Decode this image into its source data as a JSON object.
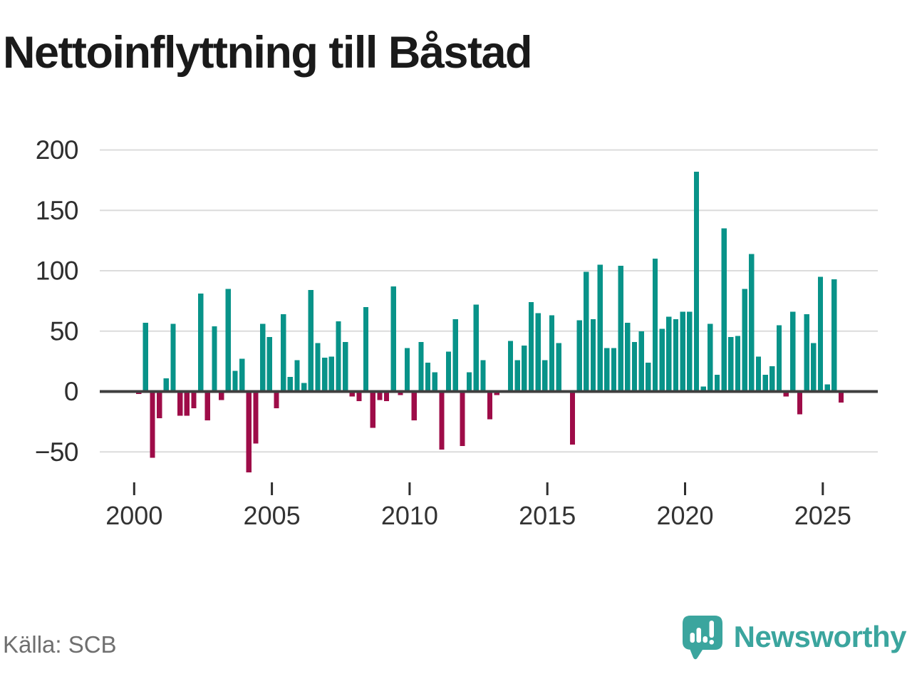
{
  "title": "Nettoinflyttning till Båstad",
  "source": "Källa: SCB",
  "branding": {
    "logo_text": "Newsworthy",
    "logo_color": "#3ba59e"
  },
  "colors": {
    "positive_bar": "#089389",
    "negative_bar": "#9e0c48",
    "gridline": "#dcdcdc",
    "zero_line": "#3f3f3f",
    "tick_mark": "#2f2f2f",
    "axis_label": "#333333",
    "title_text": "#1a1a1a",
    "source_text": "#6f6f6f",
    "background": "#ffffff"
  },
  "chart_data": {
    "type": "bar",
    "title": "Nettoinflyttning till Båstad",
    "frequency": "quarterly",
    "start": "2000 Q1",
    "end": "2025 Q3",
    "grid": true,
    "ylim": [
      -75,
      215
    ],
    "x_ticks": [
      {
        "label": "2000"
      },
      {
        "label": "2005"
      },
      {
        "label": "2010"
      },
      {
        "label": "2015"
      },
      {
        "label": "2020"
      },
      {
        "label": "2025"
      }
    ],
    "y_ticks": [
      {
        "label": "200",
        "value": 200
      },
      {
        "label": "150",
        "value": 150
      },
      {
        "label": "100",
        "value": 100
      },
      {
        "label": "50",
        "value": 50
      },
      {
        "label": "0",
        "value": 0
      },
      {
        "label": "−50",
        "value": -50
      }
    ],
    "series": [
      {
        "name": "Nettoinflyttning",
        "values": [
          -2,
          57,
          -55,
          -22,
          11,
          56,
          -20,
          -20,
          -14,
          81,
          -24,
          54,
          -7,
          85,
          17,
          27,
          -67,
          -43,
          56,
          45,
          -14,
          64,
          12,
          26,
          7,
          84,
          40,
          28,
          29,
          58,
          41,
          -4,
          -8,
          70,
          -30,
          -7,
          -8,
          87,
          -3,
          36,
          -24,
          41,
          24,
          16,
          -48,
          33,
          60,
          -45,
          16,
          72,
          26,
          -23,
          -3,
          0,
          42,
          26,
          38,
          74,
          65,
          26,
          63,
          40,
          0,
          -44,
          59,
          99,
          60,
          105,
          36,
          36,
          104,
          57,
          41,
          50,
          24,
          110,
          52,
          62,
          60,
          66,
          66,
          182,
          4,
          56,
          14,
          135,
          45,
          46,
          85,
          114,
          29,
          14,
          21,
          55,
          -4,
          66,
          -19,
          64,
          40,
          95,
          6,
          93,
          -9
        ]
      }
    ]
  }
}
